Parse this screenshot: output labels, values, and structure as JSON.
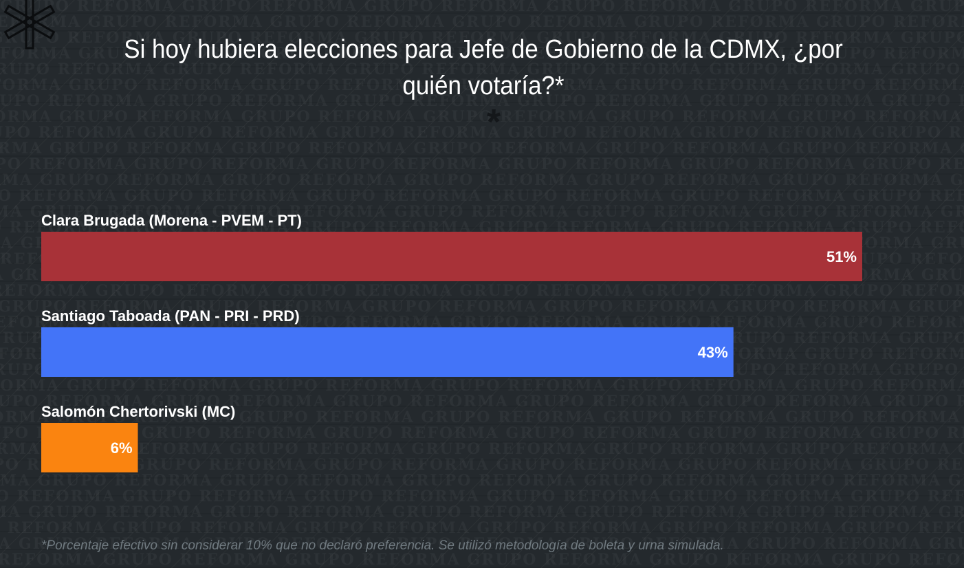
{
  "header": {
    "title": "Si hoy hubiera elecciones para Jefe de Gobierno de la CDMX, ¿por quién votaría?*"
  },
  "watermark_text": "GRUPO REFORMA",
  "footnote": "*Porcentaje efectivo sin considerar 10% que no declaró preferencia. Se utilizó metodología de boleta y urna simulada.",
  "chart_data": {
    "type": "bar",
    "orientation": "horizontal",
    "title": "Si hoy hubiera elecciones para Jefe de Gobierno de la CDMX, ¿por quién votaría?*",
    "categories": [
      "Clara Brugada (Morena - PVEM - PT)",
      "Santiago Taboada (PAN - PRI - PRD)",
      "Salomón Chertorivski (MC)"
    ],
    "values": [
      51,
      43,
      6
    ],
    "value_labels": [
      "51%",
      "43%",
      "6%"
    ],
    "colors": [
      "#a83238",
      "#4374f8",
      "#fa8410"
    ],
    "unit": "%",
    "grid": false
  }
}
